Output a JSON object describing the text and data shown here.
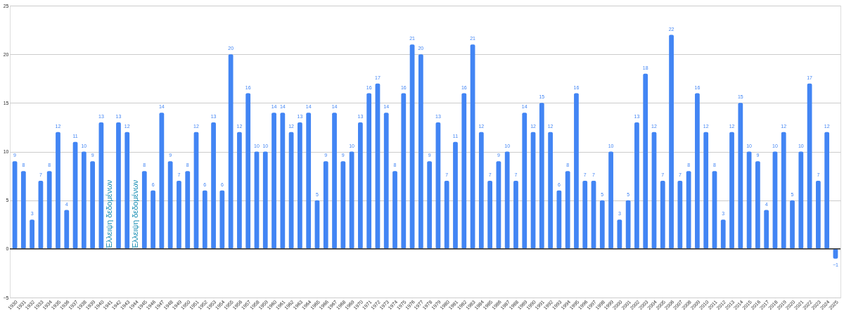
{
  "chart_data": {
    "type": "bar",
    "categories": [
      "1930",
      "1931",
      "1932",
      "1933",
      "1934",
      "1935",
      "1936",
      "1937",
      "1938",
      "1939",
      "1940",
      "1941",
      "1942",
      "1943",
      "1944",
      "1945",
      "1946",
      "1947",
      "1948",
      "1949",
      "1950",
      "1951",
      "1952",
      "1953",
      "1954",
      "1955",
      "1956",
      "1957",
      "1958",
      "1959",
      "1960",
      "1961",
      "1962",
      "1963",
      "1964",
      "1965",
      "1966",
      "1967",
      "1968",
      "1969",
      "1970",
      "1971",
      "1972",
      "1973",
      "1974",
      "1975",
      "1976",
      "1977",
      "1978",
      "1979",
      "1980",
      "1981",
      "1982",
      "1983",
      "1984",
      "1985",
      "1986",
      "1987",
      "1988",
      "1989",
      "1990",
      "1991",
      "1992",
      "1993",
      "1994",
      "1995",
      "1996",
      "1997",
      "1998",
      "1999",
      "2000",
      "2001",
      "2002",
      "2003",
      "2004",
      "2005",
      "2006",
      "2007",
      "2008",
      "2009",
      "2010",
      "2011",
      "2012",
      "2013",
      "2014",
      "2015",
      "2016",
      "2017",
      "2018",
      "2019",
      "2020",
      "2021",
      "2022",
      "2023",
      "2024",
      "2025"
    ],
    "values": [
      9,
      8,
      3,
      7,
      8,
      12,
      4,
      11,
      10,
      9,
      13,
      null,
      13,
      12,
      null,
      8,
      6,
      14,
      9,
      7,
      8,
      12,
      6,
      13,
      6,
      20,
      12,
      16,
      10,
      10,
      14,
      14,
      12,
      13,
      14,
      5,
      9,
      14,
      9,
      10,
      13,
      16,
      17,
      14,
      8,
      16,
      21,
      20,
      9,
      13,
      7,
      11,
      16,
      21,
      12,
      7,
      9,
      10,
      7,
      14,
      12,
      15,
      12,
      6,
      8,
      16,
      7,
      7,
      5,
      10,
      3,
      5,
      13,
      18,
      12,
      7,
      22,
      7,
      8,
      16,
      12,
      8,
      3,
      12,
      15,
      10,
      9,
      4,
      10,
      12,
      5,
      10,
      17,
      7,
      12,
      -1
    ],
    "color": "#4285f4",
    "ylim": [
      -5,
      25
    ],
    "yticks": [
      -5,
      0,
      5,
      10,
      15,
      20,
      25
    ],
    "grid": "y",
    "data_labels": true,
    "ref_lines": [
      {
        "axis": "y",
        "value": 0,
        "color": "#333333"
      }
    ],
    "annotations": [
      {
        "text": "Έλλειψη δεδομένων",
        "x": "1941",
        "y": 0
      },
      {
        "text": "Έλλειψη δεδομένων",
        "x": "1944",
        "y": 0
      }
    ]
  }
}
